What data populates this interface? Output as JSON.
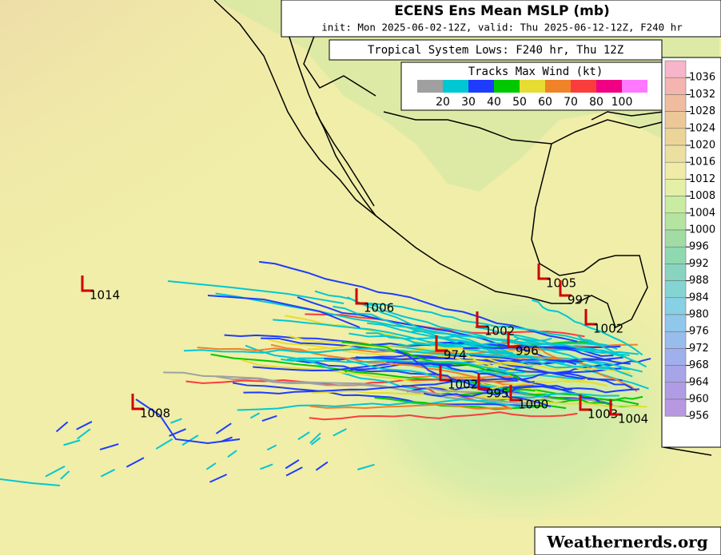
{
  "title": "ECENS Ens Mean MSLP (mb)",
  "subtitle": "init: Mon 2025-06-02-12Z, valid: Thu 2025-06-12-12Z, F240 hr",
  "tracks_title": "Tropical System Lows: F240 hr, Thu 12Z",
  "wind_legend": {
    "title": "Tracks Max Wind (kt)",
    "colors": [
      "#a0a0a0",
      "#00c8d2",
      "#1e3cff",
      "#00c800",
      "#e6dc32",
      "#f08228",
      "#fa3c3c",
      "#f00082",
      "#ff78ff"
    ],
    "labels": [
      20,
      30,
      40,
      50,
      60,
      70,
      80,
      100
    ]
  },
  "pressure_legend": {
    "labels": [
      1036,
      1032,
      1028,
      1024,
      1020,
      1016,
      1012,
      1008,
      1004,
      1000,
      996,
      992,
      988,
      984,
      980,
      976,
      972,
      968,
      964,
      960,
      956
    ],
    "colors": [
      "#f8b4c8",
      "#f4b4b0",
      "#f0bca0",
      "#ecc898",
      "#ecd498",
      "#ece0a0",
      "#f0eca8",
      "#e4f0a8",
      "#c8eca0",
      "#b4e4a0",
      "#a0dca4",
      "#90d8b0",
      "#88d4c0",
      "#84d4d4",
      "#88d0e4",
      "#90c8ec",
      "#98bcec",
      "#a0b0ec",
      "#a8a4e8",
      "#b09ce4",
      "#b898e0"
    ]
  },
  "lows": [
    1014,
    1008,
    1006,
    1005,
    997,
    1002,
    996,
    974,
    995,
    1000,
    1003,
    1004,
    1002,
    1002
  ],
  "watermark": "Weathernerds.org"
}
